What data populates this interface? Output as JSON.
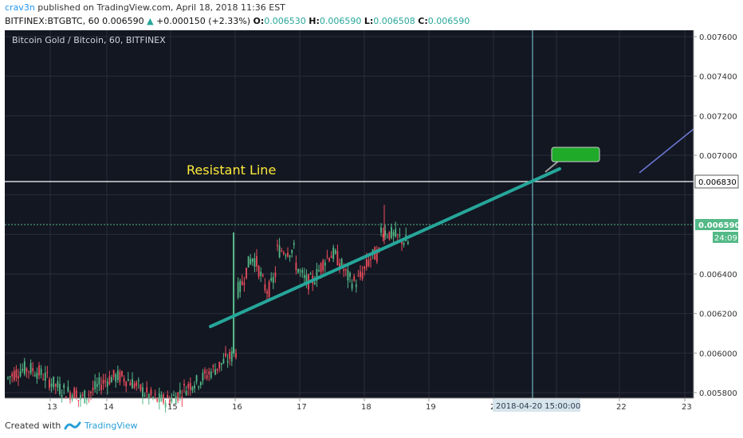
{
  "header": {
    "author": "crav3n",
    "published_text": "published on TradingView.com, April 18, 2018 11:36 EST",
    "symbol": "BITFINEX:BTGBTC, 60",
    "last": "0.006590",
    "change": "+0.000150 (+2.33%)",
    "open_label": "O:",
    "open": "0.006530",
    "high_label": "H:",
    "high": "0.006590",
    "low_label": "L:",
    "low": "0.006508",
    "close_label": "C:",
    "close": "0.006590"
  },
  "chart": {
    "pane_title": "Bitcoin Gold / Bitcoin, 60, BITFINEX",
    "annotation_text": "Resistant Line",
    "price_labels": [
      "0.007600",
      "0.007400",
      "0.007200",
      "0.007000",
      "0.006400",
      "0.006200",
      "0.006000",
      "0.005800"
    ],
    "horizontal_line_label": "0.006830",
    "last_price_label": "0.006590",
    "countdown": "24:09",
    "date_labels": [
      "13",
      "14",
      "15",
      "16",
      "17",
      "18",
      "19",
      "2",
      "22",
      "23"
    ],
    "crosshair_date": "2018-04-20 15:00:00",
    "colors": {
      "background": "#131722",
      "up_candle": "#53b987",
      "down_candle": "#eb4d5c",
      "trendline": "#26a69a",
      "annotation": "#ffeb3b",
      "callout": "#1faa2a",
      "blue_line": "#6a78d6"
    }
  },
  "chart_data": {
    "type": "candlestick",
    "title": "Bitcoin Gold / Bitcoin, 60, BITFINEX",
    "ylim": [
      0.00572,
      0.00765
    ],
    "y_ticks": [
      0.0058,
      0.006,
      0.0062,
      0.0064,
      0.0066,
      0.0068,
      0.007,
      0.0072,
      0.0074,
      0.0076
    ],
    "x_ticks": [
      "13",
      "14",
      "15",
      "16",
      "17",
      "18",
      "19",
      "20",
      "21",
      "22",
      "23"
    ],
    "resistance_level": 0.00683,
    "last_price": 0.00659,
    "trendline": [
      {
        "date": "15.6",
        "price": 0.00605
      },
      {
        "date": "20.5",
        "price": 0.00689
      }
    ]
  },
  "footer": {
    "created_with": "Created with",
    "brand": "TradingView"
  }
}
